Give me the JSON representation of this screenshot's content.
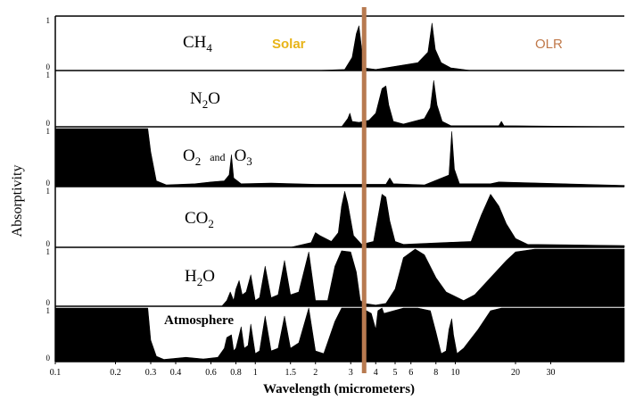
{
  "chart_data": {
    "type": "area",
    "xlabel": "Wavelength (micrometers)",
    "ylabel": "Absorptivity",
    "x_scale": "log",
    "xlim": [
      0.1,
      70
    ],
    "ylim": [
      0,
      1
    ],
    "x_ticks": [
      "0.1",
      "0.2",
      "0.3",
      "0.4",
      "0.6",
      "0.8",
      "1",
      "1.5",
      "2",
      "3",
      "4",
      "5",
      "6",
      "8",
      "10",
      "20",
      "30"
    ],
    "x_tick_values": [
      0.1,
      0.2,
      0.3,
      0.4,
      0.6,
      0.8,
      1,
      1.5,
      2,
      3,
      4,
      5,
      6,
      8,
      10,
      20,
      30
    ],
    "y_ticks_per_panel": [
      "0",
      "1"
    ],
    "annotations": {
      "solar": {
        "text": "Solar",
        "color": "#e8b418"
      },
      "olr": {
        "text": "OLR",
        "color": "#c0794a"
      },
      "divider": {
        "x": 3.5,
        "color": "#b87a50"
      }
    },
    "series": [
      {
        "name": "CH4",
        "label_main": "CH",
        "label_sub": "4",
        "points": [
          [
            0.1,
            0
          ],
          [
            2.0,
            0
          ],
          [
            2.8,
            0.02
          ],
          [
            3.05,
            0.25
          ],
          [
            3.2,
            0.7
          ],
          [
            3.3,
            0.85
          ],
          [
            3.38,
            0.5
          ],
          [
            3.5,
            0.05
          ],
          [
            4.0,
            0.02
          ],
          [
            5.0,
            0.08
          ],
          [
            6.5,
            0.15
          ],
          [
            7.3,
            0.35
          ],
          [
            7.65,
            0.9
          ],
          [
            7.95,
            0.4
          ],
          [
            8.5,
            0.15
          ],
          [
            9.5,
            0.05
          ],
          [
            12,
            0
          ],
          [
            70,
            0
          ]
        ]
      },
      {
        "name": "N2O",
        "label_main": "N",
        "label_sub": "2",
        "label_after": "O",
        "points": [
          [
            0.1,
            0
          ],
          [
            2.7,
            0
          ],
          [
            2.9,
            0.15
          ],
          [
            2.97,
            0.25
          ],
          [
            3.05,
            0.1
          ],
          [
            3.3,
            0.08
          ],
          [
            3.7,
            0.12
          ],
          [
            4.0,
            0.25
          ],
          [
            4.3,
            0.7
          ],
          [
            4.5,
            0.75
          ],
          [
            4.65,
            0.4
          ],
          [
            4.9,
            0.1
          ],
          [
            5.5,
            0.05
          ],
          [
            7.0,
            0.15
          ],
          [
            7.5,
            0.35
          ],
          [
            7.8,
            0.85
          ],
          [
            8.1,
            0.4
          ],
          [
            8.6,
            0.1
          ],
          [
            9.5,
            0.02
          ],
          [
            16.5,
            0.02
          ],
          [
            17,
            0.1
          ],
          [
            17.5,
            0.02
          ],
          [
            70,
            0
          ]
        ]
      },
      {
        "name": "O2 and O3",
        "label_main": "O",
        "label_sub": "2",
        "label_mid": "and",
        "label_main2": "O",
        "label_sub2": "3",
        "points": [
          [
            0.1,
            1
          ],
          [
            0.29,
            1
          ],
          [
            0.3,
            0.6
          ],
          [
            0.32,
            0.1
          ],
          [
            0.36,
            0.03
          ],
          [
            0.5,
            0.05
          ],
          [
            0.6,
            0.08
          ],
          [
            0.7,
            0.1
          ],
          [
            0.74,
            0.2
          ],
          [
            0.76,
            0.55
          ],
          [
            0.78,
            0.15
          ],
          [
            0.85,
            0.05
          ],
          [
            1.2,
            0.06
          ],
          [
            2.0,
            0.04
          ],
          [
            4.5,
            0.04
          ],
          [
            4.7,
            0.15
          ],
          [
            4.9,
            0.05
          ],
          [
            7,
            0.03
          ],
          [
            9.3,
            0.2
          ],
          [
            9.6,
            0.95
          ],
          [
            9.9,
            0.3
          ],
          [
            10.5,
            0.05
          ],
          [
            13,
            0.05
          ],
          [
            15,
            0.05
          ],
          [
            16.5,
            0.08
          ],
          [
            70,
            0.02
          ]
        ]
      },
      {
        "name": "CO2",
        "label_main": "CO",
        "label_sub": "2",
        "points": [
          [
            0.1,
            0
          ],
          [
            1.5,
            0
          ],
          [
            1.9,
            0.08
          ],
          [
            2.0,
            0.25
          ],
          [
            2.1,
            0.2
          ],
          [
            2.4,
            0.1
          ],
          [
            2.6,
            0.25
          ],
          [
            2.7,
            0.7
          ],
          [
            2.8,
            0.95
          ],
          [
            2.9,
            0.75
          ],
          [
            3.1,
            0.2
          ],
          [
            3.4,
            0.05
          ],
          [
            3.9,
            0.1
          ],
          [
            4.15,
            0.6
          ],
          [
            4.3,
            0.9
          ],
          [
            4.5,
            0.85
          ],
          [
            4.7,
            0.45
          ],
          [
            5.0,
            0.1
          ],
          [
            5.5,
            0.05
          ],
          [
            12,
            0.1
          ],
          [
            13.5,
            0.55
          ],
          [
            15,
            0.9
          ],
          [
            16.5,
            0.7
          ],
          [
            18,
            0.4
          ],
          [
            20,
            0.15
          ],
          [
            23,
            0.05
          ],
          [
            70,
            0.03
          ]
        ]
      },
      {
        "name": "H2O",
        "label_main": "H",
        "label_sub": "2",
        "label_after": "O",
        "points": [
          [
            0.1,
            0
          ],
          [
            0.68,
            0
          ],
          [
            0.72,
            0.1
          ],
          [
            0.75,
            0.25
          ],
          [
            0.78,
            0.1
          ],
          [
            0.8,
            0.3
          ],
          [
            0.83,
            0.45
          ],
          [
            0.86,
            0.2
          ],
          [
            0.9,
            0.25
          ],
          [
            0.95,
            0.55
          ],
          [
            1.0,
            0.1
          ],
          [
            1.05,
            0.15
          ],
          [
            1.12,
            0.7
          ],
          [
            1.2,
            0.15
          ],
          [
            1.3,
            0.2
          ],
          [
            1.4,
            0.8
          ],
          [
            1.5,
            0.2
          ],
          [
            1.65,
            0.25
          ],
          [
            1.85,
            0.95
          ],
          [
            2.0,
            0.1
          ],
          [
            2.3,
            0.1
          ],
          [
            2.5,
            0.7
          ],
          [
            2.7,
            0.97
          ],
          [
            3.0,
            0.95
          ],
          [
            3.2,
            0.6
          ],
          [
            3.35,
            0.1
          ],
          [
            3.5,
            0.05
          ],
          [
            4.0,
            0.02
          ],
          [
            4.5,
            0.05
          ],
          [
            5.0,
            0.3
          ],
          [
            5.5,
            0.85
          ],
          [
            6.3,
            1
          ],
          [
            7.0,
            0.9
          ],
          [
            8.0,
            0.5
          ],
          [
            9.0,
            0.25
          ],
          [
            11,
            0.1
          ],
          [
            12.5,
            0.2
          ],
          [
            15,
            0.5
          ],
          [
            18,
            0.8
          ],
          [
            20,
            0.95
          ],
          [
            25,
            1
          ],
          [
            70,
            1
          ]
        ]
      },
      {
        "name": "Atmosphere",
        "label_main": "Atmosphere",
        "points": [
          [
            0.1,
            1
          ],
          [
            0.29,
            1
          ],
          [
            0.3,
            0.4
          ],
          [
            0.32,
            0.1
          ],
          [
            0.35,
            0.04
          ],
          [
            0.45,
            0.08
          ],
          [
            0.55,
            0.05
          ],
          [
            0.65,
            0.08
          ],
          [
            0.7,
            0.25
          ],
          [
            0.72,
            0.45
          ],
          [
            0.76,
            0.5
          ],
          [
            0.78,
            0.2
          ],
          [
            0.8,
            0.25
          ],
          [
            0.85,
            0.65
          ],
          [
            0.88,
            0.25
          ],
          [
            0.92,
            0.3
          ],
          [
            0.95,
            0.7
          ],
          [
            1.0,
            0.15
          ],
          [
            1.05,
            0.2
          ],
          [
            1.12,
            0.85
          ],
          [
            1.2,
            0.2
          ],
          [
            1.3,
            0.25
          ],
          [
            1.4,
            0.85
          ],
          [
            1.5,
            0.25
          ],
          [
            1.65,
            0.35
          ],
          [
            1.85,
            1
          ],
          [
            2.0,
            0.2
          ],
          [
            2.2,
            0.15
          ],
          [
            2.5,
            0.75
          ],
          [
            2.7,
            1
          ],
          [
            3.0,
            1
          ],
          [
            3.4,
            1
          ],
          [
            3.8,
            0.9
          ],
          [
            4.0,
            0.6
          ],
          [
            4.1,
            0.95
          ],
          [
            4.3,
            1
          ],
          [
            4.4,
            0.9
          ],
          [
            5.5,
            1
          ],
          [
            6.5,
            1
          ],
          [
            7.5,
            0.95
          ],
          [
            8.0,
            0.55
          ],
          [
            8.5,
            0.15
          ],
          [
            9.0,
            0.2
          ],
          [
            9.3,
            0.6
          ],
          [
            9.6,
            0.8
          ],
          [
            9.8,
            0.5
          ],
          [
            10.2,
            0.15
          ],
          [
            11,
            0.25
          ],
          [
            13,
            0.6
          ],
          [
            15,
            0.95
          ],
          [
            17,
            1
          ],
          [
            70,
            1
          ]
        ]
      }
    ]
  }
}
